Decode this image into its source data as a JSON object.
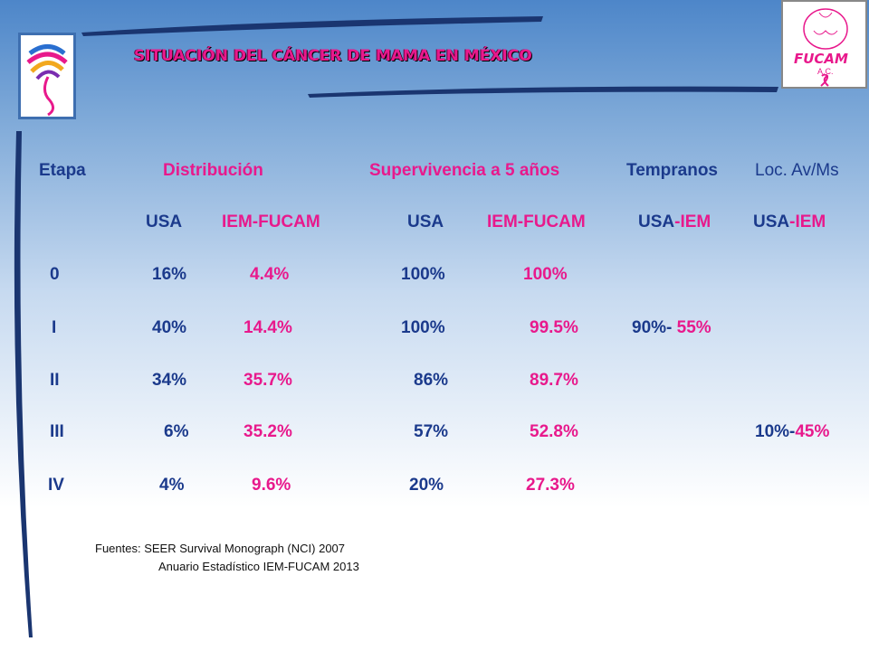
{
  "slide": {
    "title": "SITUACIÓN  DEL CÁNCER DE MAMA EN MÉXICO",
    "logo_right_text": "FUCAM",
    "logo_right_sub": "A.C.",
    "colors": {
      "blue": "#1b3a8c",
      "pink": "#e8198c"
    }
  },
  "headers": {
    "etapa": "Etapa",
    "distribucion": "Distribución",
    "supervivencia": "Supervivencia a 5 años",
    "tempranos": "Tempranos",
    "loc": "Loc. Av/Ms"
  },
  "subheaders": {
    "usa1": "USA",
    "iem1": "IEM-FUCAM",
    "usa2": "USA",
    "iem2": "IEM-FUCAM",
    "tempranos_usa": "USA",
    "tempranos_iem": "-IEM",
    "loc_usa": "USA",
    "loc_iem": "-IEM"
  },
  "rows": [
    {
      "etapa": "0",
      "dist_usa": "16%",
      "dist_iem": "4.4%",
      "sup_usa": "100%",
      "sup_iem": "100%"
    },
    {
      "etapa": "I",
      "dist_usa": "40%",
      "dist_iem": "14.4%",
      "sup_usa": "100%",
      "sup_iem": "99.5%",
      "temp_usa": "90%-",
      "temp_iem": "55%"
    },
    {
      "etapa": "II",
      "dist_usa": "34%",
      "dist_iem": "35.7%",
      "sup_usa": "86%",
      "sup_iem": "89.7%"
    },
    {
      "etapa": "III",
      "dist_usa": "6%",
      "dist_iem": "35.2%",
      "sup_usa": "57%",
      "sup_iem": "52.8%",
      "loc_usa": "10%-",
      "loc_iem": "45%"
    },
    {
      "etapa": "IV",
      "dist_usa": "4%",
      "dist_iem": "9.6%",
      "sup_usa": "20%",
      "sup_iem": "27.3%"
    }
  ],
  "sources": {
    "line1": "Fuentes: SEER Survival  Monograph (NCI) 2007",
    "line2": "Anuario Estadístico IEM-FUCAM  2013"
  }
}
